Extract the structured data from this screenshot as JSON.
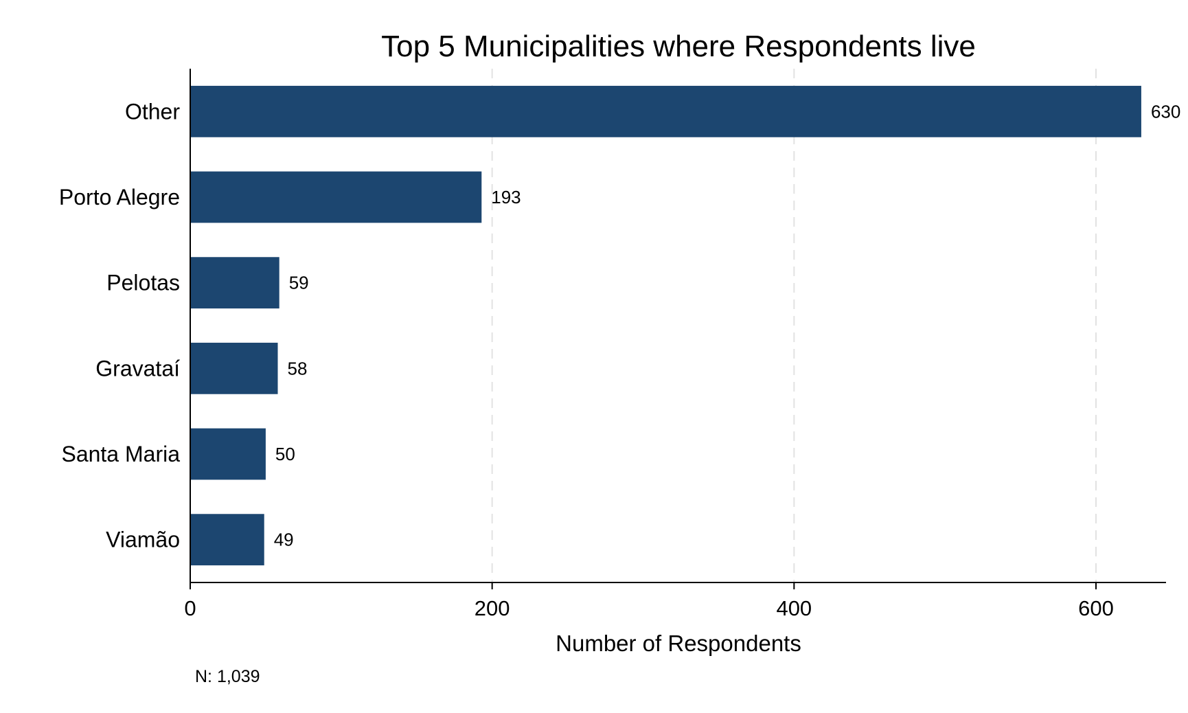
{
  "chart_data": {
    "type": "bar",
    "orientation": "horizontal",
    "title": "Top 5 Municipalities where Respondents live",
    "categories": [
      "Other",
      "Porto Alegre",
      "Pelotas",
      "Gravataí",
      "Santa Maria",
      "Viamão"
    ],
    "values": [
      630,
      193,
      59,
      58,
      50,
      49
    ],
    "data_labels": [
      "630",
      "193",
      "59",
      "58",
      "50",
      "49"
    ],
    "xlabel": "Number of Respondents",
    "ylabel": "",
    "xlim": [
      0,
      650
    ],
    "xticks": [
      0,
      200,
      400,
      600
    ],
    "xtick_labels": [
      "0",
      "200",
      "400",
      "600"
    ],
    "grid": "vertical dashed",
    "legend": "none",
    "bar_color": "#1c4670",
    "note": "N: 1,039"
  }
}
